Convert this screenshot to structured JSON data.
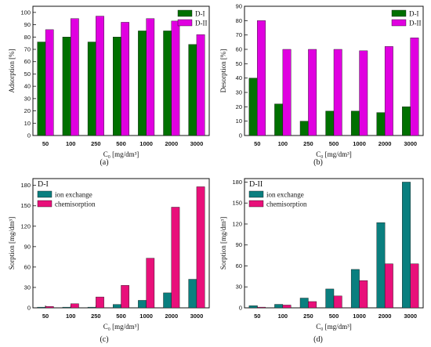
{
  "chart_data": [
    {
      "type": "bar",
      "panel_label": "(a)",
      "categories": [
        "50",
        "100",
        "250",
        "500",
        "1000",
        "2000",
        "3000"
      ],
      "series": [
        {
          "name": "D-I",
          "values": [
            76,
            80,
            76,
            80,
            85,
            85,
            74
          ],
          "color": "#007000"
        },
        {
          "name": "D-II",
          "values": [
            86,
            95,
            97,
            92,
            95,
            93,
            82
          ],
          "color": "#e000e0"
        }
      ],
      "xlabel": "C₀ [mg/dm³]",
      "ylabel": "Adsorption [%]",
      "ylim": [
        0,
        105
      ],
      "yticks": [
        0,
        10,
        20,
        30,
        40,
        50,
        60,
        70,
        80,
        90,
        100
      ],
      "legend_position": "top-right"
    },
    {
      "type": "bar",
      "panel_label": "(b)",
      "categories": [
        "50",
        "100",
        "250",
        "500",
        "1000",
        "2000",
        "3000"
      ],
      "series": [
        {
          "name": "D-I",
          "values": [
            40,
            22,
            10,
            17,
            17,
            16,
            20
          ],
          "color": "#007000"
        },
        {
          "name": "D-II",
          "values": [
            80,
            60,
            60,
            60,
            59,
            62,
            68
          ],
          "color": "#e000e0"
        }
      ],
      "xlabel": "C₀ [mg/dm³]",
      "ylabel": "Desorption [%]",
      "ylim": [
        0,
        90
      ],
      "yticks": [
        0,
        10,
        20,
        30,
        40,
        50,
        60,
        70,
        80,
        90
      ],
      "legend_position": "top-right"
    },
    {
      "type": "bar",
      "panel_label": "(c)",
      "title": "D-I",
      "categories": [
        "50",
        "100",
        "250",
        "500",
        "1000",
        "2000",
        "3000"
      ],
      "series": [
        {
          "name": "ion exchange",
          "values": [
            1,
            1,
            1,
            5,
            11,
            22,
            42
          ],
          "color": "#0a7f7f"
        },
        {
          "name": "chemisorption",
          "values": [
            2,
            6,
            16,
            33,
            73,
            148,
            178
          ],
          "color": "#e8107a"
        }
      ],
      "xlabel": "C₀ [mg/dm³]",
      "ylabel": "Sorption [mg/dm³]",
      "ylim": [
        0,
        190
      ],
      "yticks": [
        0,
        30,
        60,
        90,
        120,
        150,
        180
      ],
      "legend_position": "top-left"
    },
    {
      "type": "bar",
      "panel_label": "(d)",
      "title": "D-II",
      "categories": [
        "50",
        "100",
        "250",
        "500",
        "1000",
        "2000",
        "3000"
      ],
      "series": [
        {
          "name": "ion exchange",
          "values": [
            3,
            5,
            14,
            27,
            55,
            122,
            180
          ],
          "color": "#0a7f7f"
        },
        {
          "name": "chemisorption",
          "values": [
            1,
            4,
            9,
            17,
            39,
            63,
            63
          ],
          "color": "#e8107a"
        }
      ],
      "xlabel": "C₀ [mg/dm³]",
      "ylabel": "Sorption [mg/dm³]",
      "ylim": [
        0,
        185
      ],
      "yticks": [
        0,
        30,
        60,
        90,
        120,
        150,
        180
      ],
      "legend_position": "top-left"
    }
  ]
}
